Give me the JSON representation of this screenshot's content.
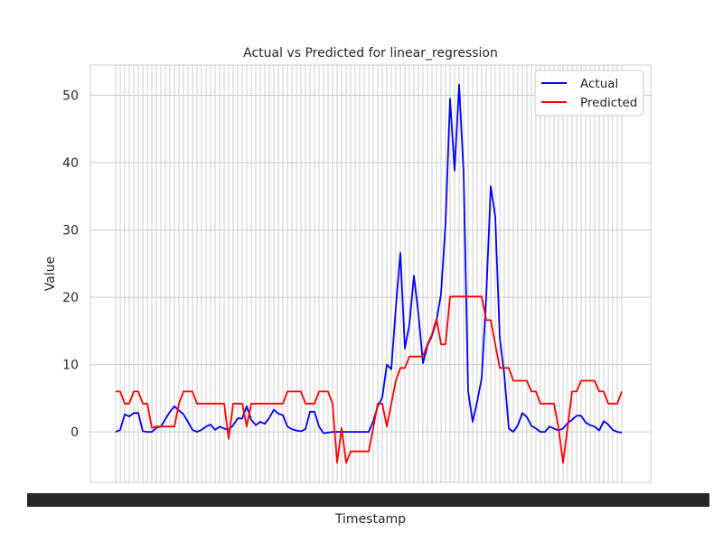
{
  "chart_data": {
    "type": "line",
    "title": "Actual vs Predicted for linear_regression",
    "xlabel": "Timestamp",
    "ylabel": "Value",
    "ylim": [
      -7.5,
      54.5
    ],
    "yticks": [
      0,
      10,
      20,
      30,
      40,
      50
    ],
    "ytick_labels": [
      "0",
      "10",
      "20",
      "30",
      "40",
      "50"
    ],
    "grid": true,
    "legend_position": "top-right",
    "x_count": 113,
    "x_tick_labels_note": "overlapping timestamp labels (illegible)",
    "x_tick_label_start": "2022",
    "x_tick_label_end": "1 00:00",
    "series": [
      {
        "name": "Actual",
        "color": "#0000ff",
        "values": [
          0.0,
          0.3,
          2.6,
          2.3,
          2.8,
          2.8,
          0.1,
          0.0,
          0.0,
          0.6,
          0.8,
          1.9,
          3.0,
          3.8,
          3.2,
          2.6,
          1.5,
          0.3,
          0.0,
          0.3,
          0.8,
          1.1,
          0.3,
          0.8,
          0.5,
          0.3,
          1.0,
          2.0,
          2.0,
          3.8,
          1.8,
          1.0,
          1.5,
          1.2,
          2.1,
          3.3,
          2.7,
          2.5,
          0.8,
          0.4,
          0.2,
          0.1,
          0.4,
          3.0,
          3.0,
          0.8,
          -0.2,
          -0.1,
          0.0,
          0.0,
          0.0,
          0.0,
          0.0,
          0.0,
          0.0,
          0.0,
          0.0,
          1.6,
          3.8,
          5.1,
          10.0,
          9.3,
          18.5,
          26.6,
          12.4,
          16.0,
          23.2,
          17.5,
          10.2,
          12.8,
          14.3,
          16.5,
          20.5,
          31.0,
          49.5,
          38.8,
          51.6,
          38.5,
          6.0,
          1.5,
          4.5,
          8.0,
          20.0,
          36.5,
          32.0,
          14.0,
          8.5,
          0.5,
          0.0,
          1.0,
          2.8,
          2.2,
          0.9,
          0.5,
          0.0,
          0.0,
          0.8,
          0.5,
          0.2,
          0.5,
          1.3,
          1.8,
          2.4,
          2.4,
          1.4,
          1.0,
          0.8,
          0.2,
          1.6,
          1.1,
          0.3,
          0.0,
          -0.1
        ]
      },
      {
        "name": "Predicted",
        "color": "#ff0000",
        "values": [
          6.0,
          6.0,
          4.2,
          4.2,
          6.0,
          6.0,
          4.2,
          4.2,
          0.6,
          0.8,
          0.8,
          0.8,
          0.8,
          0.8,
          4.2,
          6.0,
          6.0,
          6.0,
          4.2,
          4.2,
          4.2,
          4.2,
          4.2,
          4.2,
          4.2,
          -1.0,
          4.2,
          4.2,
          4.2,
          0.8,
          4.2,
          4.2,
          4.2,
          4.2,
          4.2,
          4.2,
          4.2,
          4.2,
          6.0,
          6.0,
          6.0,
          6.0,
          4.2,
          4.2,
          4.2,
          6.0,
          6.0,
          6.0,
          4.2,
          -4.6,
          0.6,
          -4.6,
          -2.9,
          -2.9,
          -2.9,
          -2.9,
          -2.9,
          0.6,
          4.2,
          4.2,
          0.8,
          4.2,
          7.6,
          9.5,
          9.5,
          11.2,
          11.2,
          11.2,
          11.2,
          13.0,
          14.5,
          16.8,
          13.0,
          13.0,
          20.1,
          20.1,
          20.1,
          20.1,
          20.1,
          20.1,
          20.1,
          20.1,
          16.6,
          16.6,
          13.0,
          9.5,
          9.5,
          9.5,
          7.6,
          7.6,
          7.6,
          7.6,
          6.0,
          6.0,
          4.2,
          4.2,
          4.2,
          4.2,
          0.6,
          -4.6,
          0.6,
          6.0,
          6.0,
          7.6,
          7.6,
          7.6,
          7.6,
          6.0,
          6.0,
          4.2,
          4.2,
          4.2,
          6.0
        ]
      }
    ]
  }
}
